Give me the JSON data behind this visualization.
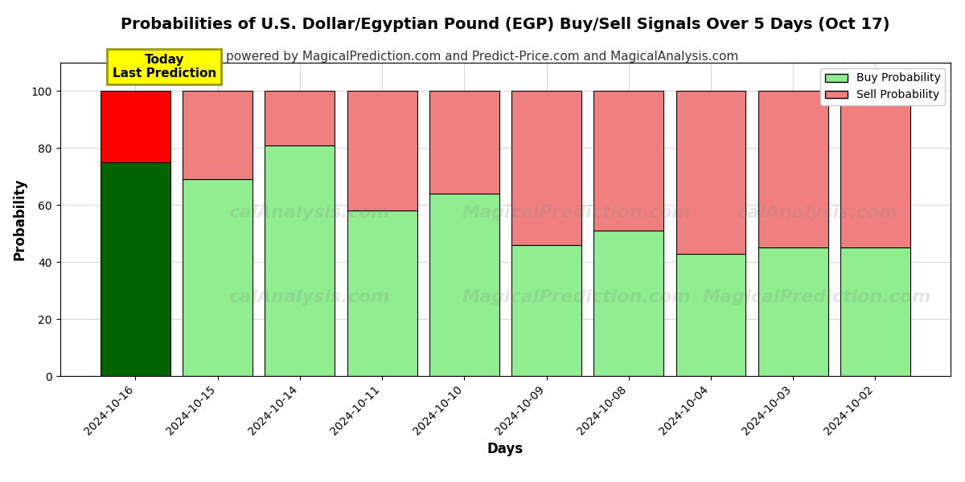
{
  "title": "Probabilities of U.S. Dollar/Egyptian Pound (EGP) Buy/Sell Signals Over 5 Days (Oct 17)",
  "subtitle": "powered by MagicalPrediction.com and Predict-Price.com and MagicalAnalysis.com",
  "xlabel": "Days",
  "ylabel": "Probability",
  "dates": [
    "2024-10-16",
    "2024-10-15",
    "2024-10-14",
    "2024-10-11",
    "2024-10-10",
    "2024-10-09",
    "2024-10-08",
    "2024-10-04",
    "2024-10-03",
    "2024-10-02"
  ],
  "buy_values": [
    75,
    69,
    81,
    58,
    64,
    46,
    51,
    43,
    45,
    45
  ],
  "sell_values": [
    25,
    31,
    19,
    42,
    36,
    54,
    49,
    57,
    55,
    55
  ],
  "today_buy_color": "#006400",
  "today_sell_color": "#FF0000",
  "regular_buy_color": "#90EE90",
  "regular_sell_color": "#F08080",
  "bar_edge_color": "black",
  "today_annotation_text": "Today\nLast Prediction",
  "today_annotation_bg": "#FFFF00",
  "today_annotation_border": "#CCCC00",
  "legend_buy_label": "Buy Probability",
  "legend_sell_label": "Sell Probability",
  "ylim": [
    0,
    110
  ],
  "yticks": [
    0,
    20,
    40,
    60,
    80,
    100
  ],
  "dashed_line_y": 110,
  "background_color": "#ffffff",
  "grid_color": "#aaaaaa",
  "title_fontsize": 14,
  "subtitle_fontsize": 11,
  "label_fontsize": 12,
  "tick_fontsize": 10,
  "bar_width": 0.85
}
